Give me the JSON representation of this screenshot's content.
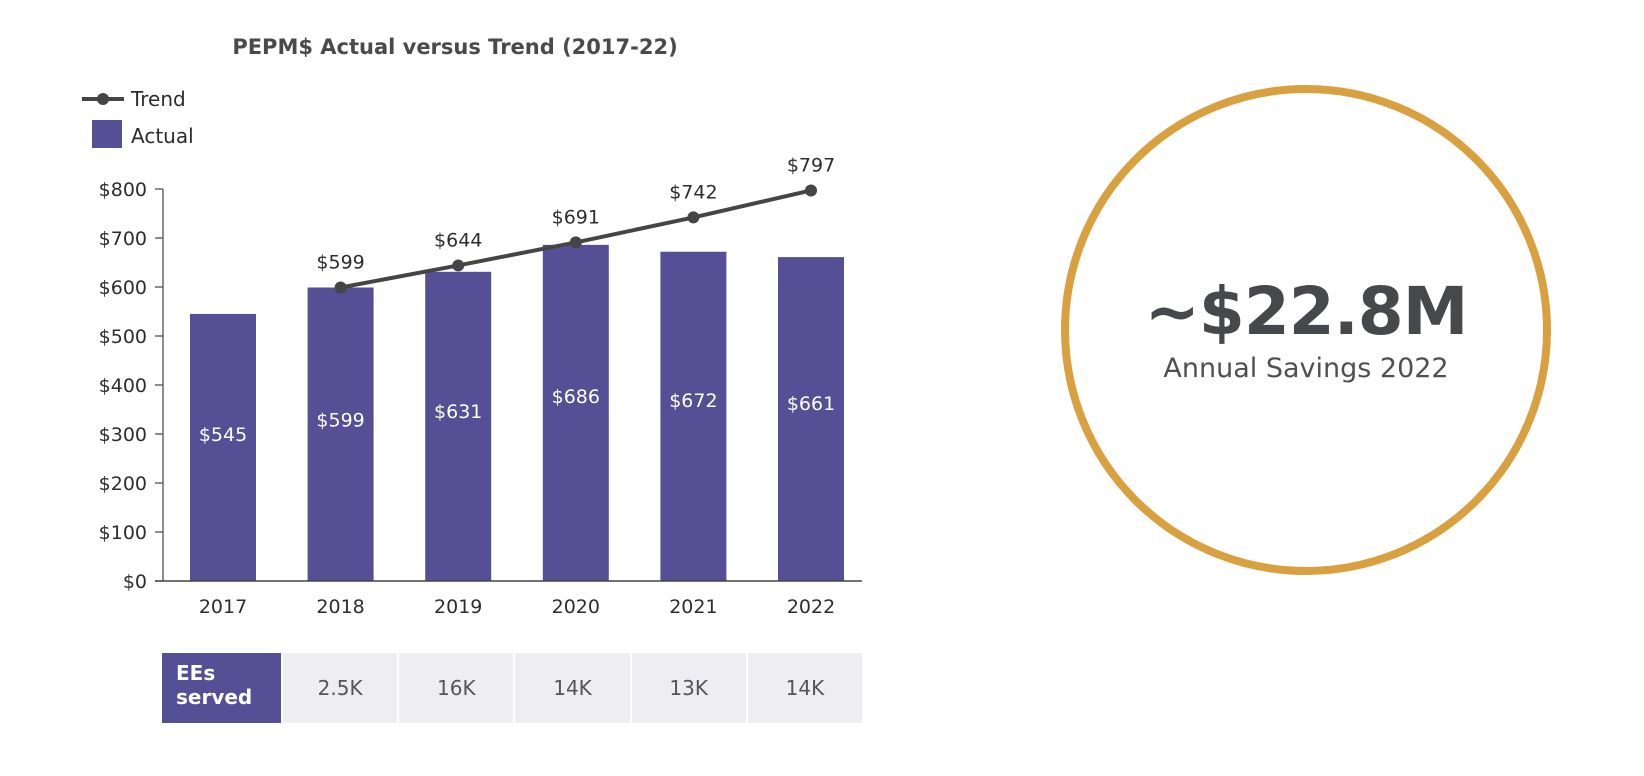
{
  "chart_data": {
    "type": "bar",
    "title": "PEPM$ Actual versus Trend (2017-22)",
    "xlabel": "",
    "ylabel": "",
    "categories": [
      "2017",
      "2018",
      "2019",
      "2020",
      "2021",
      "2022"
    ],
    "ylim": [
      0,
      800
    ],
    "yticks": [
      0,
      100,
      200,
      300,
      400,
      500,
      600,
      700,
      800
    ],
    "ytick_labels": [
      "$0",
      "$100",
      "$200",
      "$300",
      "$400",
      "$500",
      "$600",
      "$700",
      "$800"
    ],
    "grid": false,
    "legend_position": "top-left",
    "series": [
      {
        "name": "Actual",
        "type": "bar",
        "color": "#554f96",
        "values": [
          545,
          599,
          631,
          686,
          672,
          661
        ],
        "labels": [
          "$545",
          "$599",
          "$631",
          "$686",
          "$672",
          "$661"
        ]
      },
      {
        "name": "Trend",
        "type": "line",
        "color": "#454545",
        "values": [
          null,
          599,
          644,
          691,
          742,
          797
        ],
        "labels": [
          null,
          "$599",
          "$644",
          "$691",
          "$742",
          "$797"
        ]
      }
    ]
  },
  "legend": {
    "trend_label": "Trend",
    "actual_label": "Actual"
  },
  "ees_table": {
    "header": "EEs served",
    "values": [
      "2.5K",
      "16K",
      "14K",
      "13K",
      "14K"
    ]
  },
  "savings": {
    "value": "~$22.8M",
    "label": "Annual Savings 2022",
    "ring_color": "#d9a03f"
  }
}
